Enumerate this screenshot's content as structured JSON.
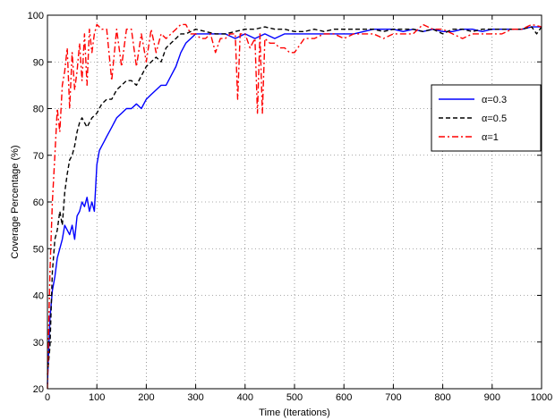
{
  "chart_data": {
    "type": "line",
    "title": "",
    "xlabel": "Time (Iterations)",
    "ylabel": "Coverage Percentage (%)",
    "xlim": [
      0,
      1000
    ],
    "ylim": [
      20,
      100
    ],
    "xticks": [
      0,
      100,
      200,
      300,
      400,
      500,
      600,
      700,
      800,
      900,
      1000
    ],
    "yticks": [
      20,
      30,
      40,
      50,
      60,
      70,
      80,
      90,
      100
    ],
    "grid": true,
    "legend_position": "right",
    "series": [
      {
        "name": "α=0.3",
        "color": "#0000ff",
        "dash": "solid",
        "x": [
          0,
          5,
          10,
          15,
          20,
          25,
          30,
          35,
          40,
          45,
          50,
          55,
          60,
          65,
          70,
          75,
          80,
          85,
          90,
          95,
          100,
          105,
          110,
          115,
          120,
          130,
          140,
          150,
          160,
          170,
          180,
          190,
          200,
          210,
          220,
          230,
          240,
          250,
          260,
          270,
          280,
          290,
          300,
          320,
          340,
          360,
          380,
          400,
          420,
          440,
          460,
          480,
          500,
          520,
          540,
          560,
          580,
          600,
          620,
          640,
          660,
          680,
          700,
          720,
          740,
          760,
          780,
          800,
          820,
          840,
          860,
          880,
          900,
          920,
          940,
          960,
          980,
          1000
        ],
        "y": [
          21,
          35,
          41,
          44,
          48,
          50,
          52,
          55,
          54,
          53,
          55,
          52,
          57,
          58,
          60,
          59,
          61,
          58,
          60,
          58,
          68,
          71,
          72,
          73,
          74,
          76,
          78,
          79,
          80,
          80,
          81,
          80,
          82,
          83,
          84,
          85,
          85,
          87,
          89,
          92,
          94,
          95,
          96,
          96,
          96,
          96,
          95,
          96,
          95,
          96,
          95,
          96,
          96,
          96,
          96,
          96,
          96,
          96,
          96,
          96.5,
          97,
          97,
          97,
          96.5,
          97,
          96.5,
          97,
          96.5,
          96.5,
          97,
          97,
          96.5,
          97,
          97,
          97,
          97,
          97.5,
          97.5
        ]
      },
      {
        "name": "α=0.5",
        "color": "#000000",
        "dash": "dashed",
        "x": [
          0,
          5,
          10,
          15,
          20,
          25,
          30,
          35,
          40,
          45,
          50,
          55,
          60,
          65,
          70,
          75,
          80,
          90,
          100,
          110,
          120,
          130,
          140,
          150,
          160,
          170,
          180,
          190,
          200,
          210,
          220,
          230,
          240,
          250,
          260,
          270,
          280,
          290,
          300,
          320,
          340,
          360,
          380,
          400,
          420,
          440,
          460,
          480,
          500,
          520,
          540,
          560,
          580,
          600,
          620,
          640,
          660,
          680,
          700,
          720,
          740,
          760,
          780,
          800,
          820,
          840,
          860,
          880,
          900,
          920,
          940,
          960,
          980,
          990,
          1000
        ],
        "y": [
          23,
          29,
          45,
          52,
          54,
          58,
          55,
          62,
          66,
          69,
          70,
          72,
          75,
          77,
          78,
          77,
          76,
          78,
          79,
          81,
          82,
          82,
          84,
          85,
          86,
          86,
          85,
          87,
          89,
          90,
          91,
          90,
          93,
          94,
          95,
          96,
          96,
          96.5,
          97,
          96.5,
          96,
          96,
          96.5,
          97,
          97,
          97.5,
          97,
          97,
          96.5,
          96.5,
          97,
          96.5,
          97,
          97,
          97,
          97,
          97,
          96.5,
          97,
          97,
          97,
          96.5,
          97,
          96,
          97,
          97,
          96.5,
          97,
          97,
          97,
          97,
          97,
          97.5,
          96,
          97.5
        ]
      },
      {
        "name": "α=1",
        "color": "#ff0000",
        "dash": "dashdot",
        "x": [
          0,
          5,
          10,
          15,
          20,
          25,
          30,
          35,
          40,
          45,
          50,
          55,
          60,
          65,
          70,
          75,
          80,
          85,
          90,
          95,
          100,
          110,
          120,
          130,
          140,
          150,
          160,
          170,
          180,
          190,
          200,
          210,
          220,
          230,
          240,
          250,
          260,
          270,
          280,
          290,
          300,
          310,
          320,
          330,
          340,
          350,
          360,
          370,
          380,
          385,
          390,
          400,
          410,
          420,
          425,
          430,
          435,
          440,
          450,
          460,
          470,
          480,
          490,
          500,
          520,
          540,
          560,
          580,
          600,
          620,
          640,
          660,
          680,
          700,
          720,
          740,
          760,
          780,
          800,
          820,
          840,
          860,
          880,
          900,
          920,
          940,
          960,
          980,
          1000
        ],
        "y": [
          20,
          45,
          60,
          70,
          80,
          75,
          85,
          88,
          93,
          80,
          92,
          84,
          88,
          94,
          86,
          96,
          85,
          97,
          92,
          96,
          98,
          97,
          97,
          86,
          97,
          89,
          97,
          97,
          89,
          96,
          90,
          97,
          92,
          96,
          95,
          96,
          97,
          98,
          98,
          96,
          96,
          95,
          95,
          96,
          92,
          95,
          95,
          96,
          96,
          82,
          96,
          96,
          93,
          95,
          79,
          96,
          79,
          95,
          94,
          94,
          93,
          93,
          92,
          92,
          95,
          95,
          96,
          96,
          95,
          96,
          96,
          96,
          95,
          96,
          96,
          96,
          98,
          97,
          97,
          96,
          95,
          96,
          96,
          96,
          96,
          97,
          97,
          98,
          97.5
        ]
      }
    ]
  }
}
